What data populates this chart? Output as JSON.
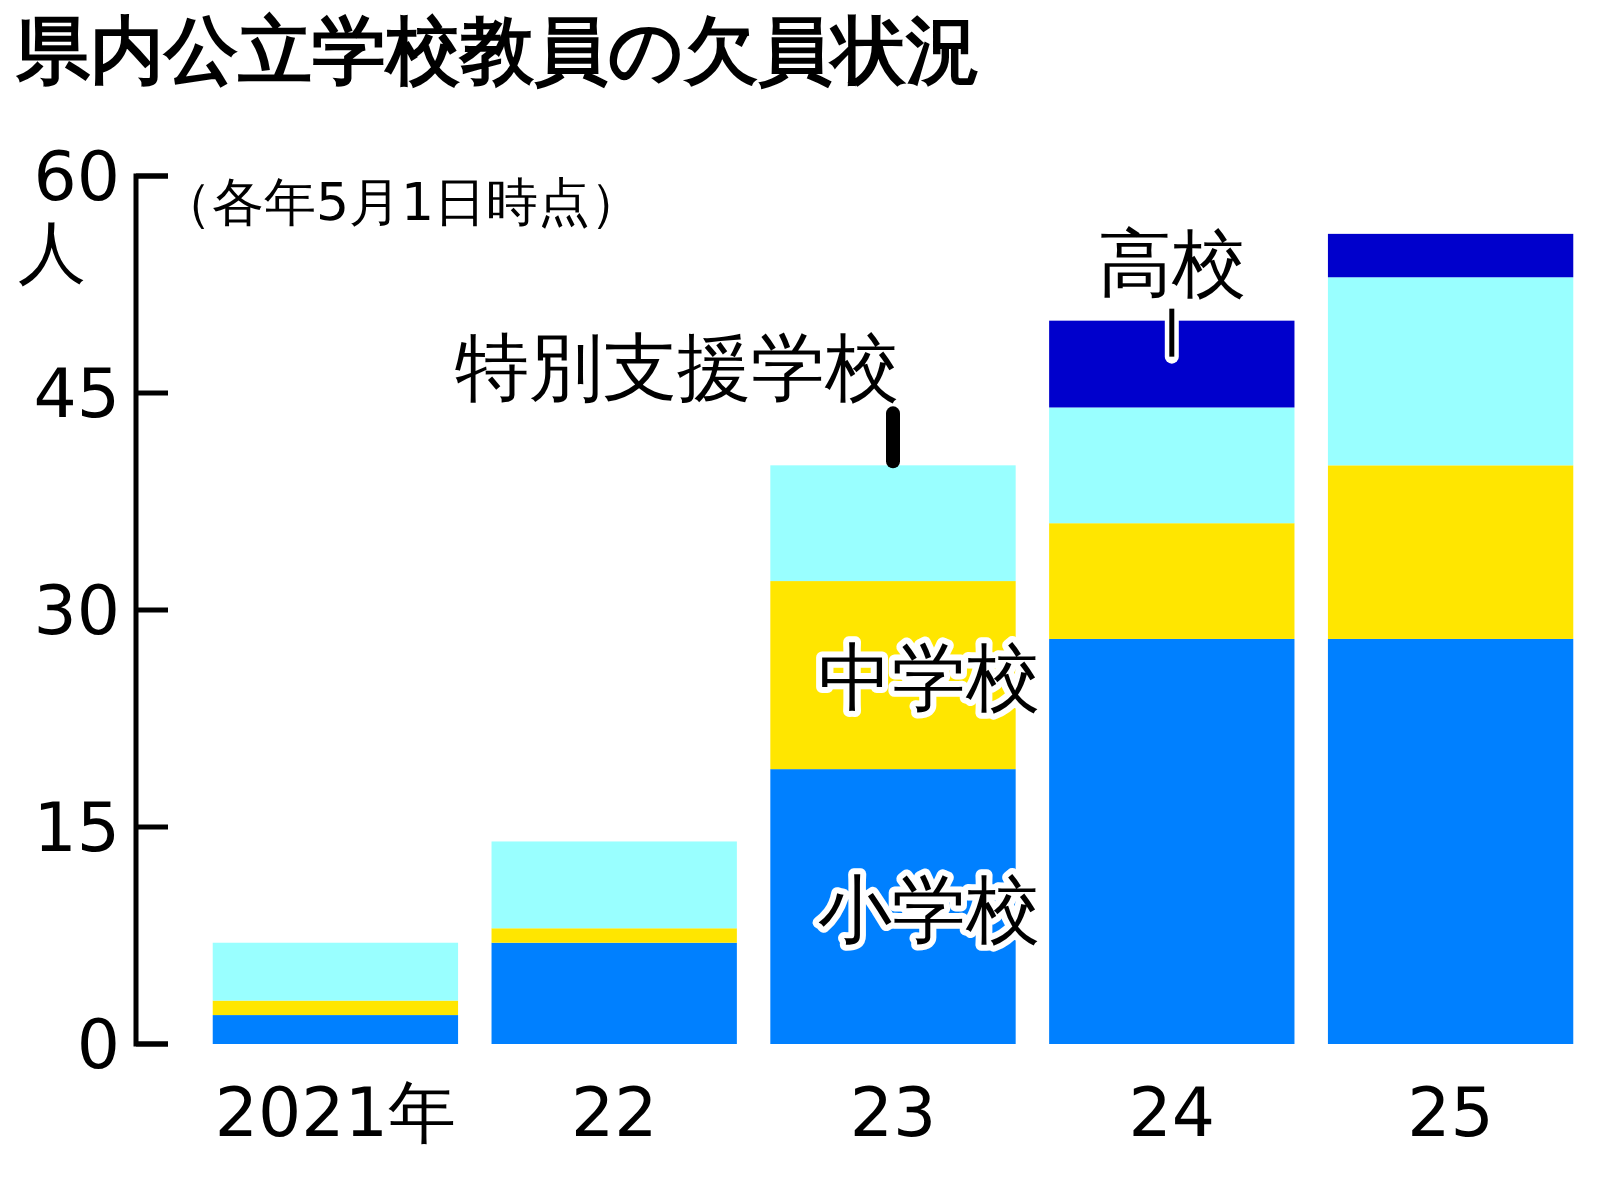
{
  "chart_data": {
    "type": "bar",
    "stacked": true,
    "title": "県内公立学校教員の欠員状況",
    "subtitle": "（各年5月1日時点）",
    "ylabel": "人",
    "categories": [
      "2021年",
      "22",
      "23",
      "24",
      "25"
    ],
    "ylim": [
      0,
      60
    ],
    "yticks": [
      0,
      15,
      30,
      45,
      60
    ],
    "series": [
      {
        "name": "小学校",
        "color": "#0080ff",
        "values": [
          2,
          7,
          19,
          28,
          28
        ]
      },
      {
        "name": "中学校",
        "color": "#ffe600",
        "values": [
          1,
          1,
          13,
          8,
          12
        ]
      },
      {
        "name": "特別支援学校",
        "color": "#99ffff",
        "values": [
          4,
          6,
          8,
          8,
          13
        ]
      },
      {
        "name": "高校",
        "color": "#0000cc",
        "values": [
          null,
          null,
          null,
          6,
          3
        ]
      }
    ]
  }
}
